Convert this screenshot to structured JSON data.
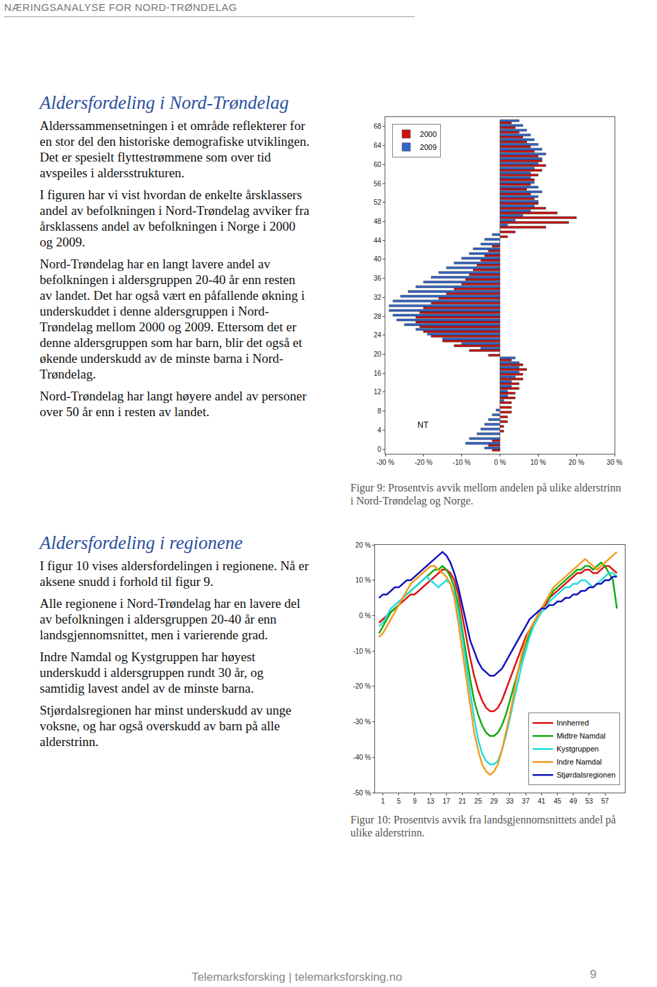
{
  "header": "NÆRINGSANALYSE FOR NORD-TRØNDELAG",
  "sections": [
    {
      "heading": "Aldersfordeling i Nord-Trøndelag",
      "paragraphs": [
        "Alderssammensetningen i et område reflekterer for en stor del den historiske demografiske utviklingen. Det er spesielt flyttestrømmene som over tid avspeiles i aldersstrukturen.",
        "I figuren har vi vist hvordan de enkelte årsklassers andel av befolkningen i Nord-Trøndelag avviker fra årsklassens andel av befolkningen i Norge i 2000 og 2009.",
        "Nord-Trøndelag har en langt lavere andel av befolkningen i aldersgruppen 20-40 år enn resten av landet. Det har også vært en påfallende økning i underskuddet i denne aldersgruppen i Nord-Trøndelag mellom 2000 og 2009. Ettersom det er denne aldersgruppen som har barn, blir det også et økende underskudd av de minste barna i Nord-Trøndelag.",
        "Nord-Trøndelag har langt høyere andel av personer over 50 år enn i resten av landet."
      ]
    },
    {
      "heading": "Aldersfordeling i regionene",
      "paragraphs": [
        "I figur 10 vises aldersfordelingen i regionene. Nå er aksene snudd i forhold til figur 9.",
        "Alle regionene i Nord-Trøndelag har en lavere del av befolkningen i aldersgruppen 20-40 år enn landsgjennomsnittet, men i varierende grad.",
        "Indre Namdal og Kystgruppen har høyest underskudd i aldersgruppen rundt 30 år, og samtidig lavest andel av de minste barna.",
        "Stjørdalsregionen har minst underskudd av unge voksne, og har også overskudd av barn på alle alderstrinn."
      ]
    }
  ],
  "chart_data": [
    {
      "type": "bar",
      "orientation": "horizontal",
      "caption": "Figur 9: Prosentvis avvik mellom andelen på ulike alderstrinn i Nord-Trøndelag og Norge.",
      "categories": [
        0,
        1,
        2,
        3,
        4,
        5,
        6,
        7,
        8,
        9,
        10,
        11,
        12,
        13,
        14,
        15,
        16,
        17,
        18,
        19,
        20,
        21,
        22,
        23,
        24,
        25,
        26,
        27,
        28,
        29,
        30,
        31,
        32,
        33,
        34,
        35,
        36,
        37,
        38,
        39,
        40,
        41,
        42,
        43,
        44,
        45,
        46,
        47,
        48,
        49,
        50,
        51,
        52,
        53,
        54,
        55,
        56,
        57,
        58,
        59,
        60,
        61,
        62,
        63,
        64,
        65,
        66,
        67,
        68,
        69
      ],
      "series": [
        {
          "name": "2000",
          "color": "#cc1111",
          "values": [
            -2,
            -3,
            -2,
            0,
            1,
            1,
            2,
            2,
            3,
            3,
            3,
            4,
            4,
            5,
            5,
            6,
            6,
            7,
            6,
            3,
            -3,
            -8,
            -12,
            -15,
            -18,
            -20,
            -21,
            -22,
            -22,
            -21,
            -20,
            -18,
            -16,
            -14,
            -12,
            -10,
            -9,
            -8,
            -7,
            -6,
            -5,
            -4,
            -3,
            -2,
            0,
            2,
            4,
            12,
            18,
            20,
            15,
            12,
            10,
            9,
            8,
            7,
            8,
            9,
            10,
            11,
            12,
            11,
            10,
            9,
            8,
            7,
            6,
            5,
            4,
            3
          ]
        },
        {
          "name": "2009",
          "color": "#3366cc",
          "values": [
            -4,
            -9,
            -8,
            -6,
            -5,
            -4,
            -3,
            -2,
            -1,
            0,
            1,
            2,
            2,
            3,
            3,
            4,
            5,
            5,
            5,
            4,
            0,
            -5,
            -10,
            -15,
            -19,
            -22,
            -25,
            -27,
            -28,
            -29,
            -29,
            -28,
            -26,
            -24,
            -22,
            -20,
            -18,
            -16,
            -14,
            -12,
            -10,
            -8,
            -7,
            -5,
            -4,
            -2,
            0,
            2,
            4,
            6,
            8,
            9,
            10,
            10,
            11,
            10,
            9,
            8,
            8,
            9,
            10,
            11,
            12,
            11,
            10,
            9,
            8,
            7,
            6,
            5
          ]
        }
      ],
      "xlim": [
        -30,
        30
      ],
      "xticks": [
        {
          "value": -30,
          "label": "-30 %"
        },
        {
          "value": -20,
          "label": "-20 %"
        },
        {
          "value": -10,
          "label": "-10 %"
        },
        {
          "value": 0,
          "label": "0 %"
        },
        {
          "value": 10,
          "label": "10 %"
        },
        {
          "value": 20,
          "label": "20 %"
        },
        {
          "value": 30,
          "label": "30 %"
        }
      ],
      "ylim": [
        -1,
        70
      ],
      "yticks": [
        0,
        4,
        8,
        12,
        16,
        20,
        24,
        28,
        32,
        36,
        40,
        44,
        48,
        52,
        56,
        60,
        64,
        68
      ],
      "annotations": [
        {
          "text": "NT",
          "x": -20,
          "y": 5
        }
      ],
      "legend": "upper left",
      "grid": false
    },
    {
      "type": "line",
      "caption": "Figur 10: Prosentvis avvik fra landsgjennomsnittets andel på ulike alderstrinn.",
      "x": [
        0,
        1,
        2,
        3,
        4,
        5,
        6,
        7,
        8,
        9,
        10,
        11,
        12,
        13,
        14,
        15,
        16,
        17,
        18,
        19,
        20,
        21,
        22,
        23,
        24,
        25,
        26,
        27,
        28,
        29,
        30,
        31,
        32,
        33,
        34,
        35,
        36,
        37,
        38,
        39,
        40,
        41,
        42,
        43,
        44,
        45,
        46,
        47,
        48,
        49,
        50,
        51,
        52,
        53,
        54,
        55,
        56,
        57,
        58,
        59,
        60
      ],
      "series": [
        {
          "name": "Innherred",
          "color": "#dd1111",
          "values": [
            -2,
            -1,
            0,
            1,
            2,
            3,
            4,
            5,
            6,
            6,
            7,
            8,
            9,
            10,
            11,
            12,
            13,
            13,
            12,
            10,
            6,
            0,
            -6,
            -12,
            -17,
            -21,
            -24,
            -26,
            -27,
            -27,
            -26,
            -24,
            -21,
            -18,
            -15,
            -12,
            -9,
            -6,
            -4,
            -2,
            0,
            2,
            3,
            5,
            6,
            7,
            8,
            9,
            10,
            11,
            12,
            12,
            13,
            13,
            12,
            12,
            13,
            14,
            14,
            13,
            12
          ]
        },
        {
          "name": "Midtre Namdal",
          "color": "#11aa11",
          "values": [
            -5,
            -3,
            -1,
            1,
            2,
            3,
            5,
            6,
            7,
            8,
            9,
            10,
            11,
            12,
            13,
            13,
            14,
            13,
            11,
            8,
            3,
            -4,
            -11,
            -18,
            -24,
            -28,
            -31,
            -33,
            -34,
            -34,
            -33,
            -31,
            -28,
            -24,
            -20,
            -16,
            -12,
            -8,
            -5,
            -2,
            0,
            2,
            4,
            5,
            7,
            8,
            9,
            10,
            11,
            12,
            13,
            13,
            14,
            14,
            13,
            14,
            15,
            14,
            12,
            10,
            2
          ]
        },
        {
          "name": "Kystgruppen",
          "color": "#22dddd",
          "values": [
            -3,
            -2,
            0,
            2,
            3,
            4,
            5,
            6,
            7,
            8,
            9,
            10,
            11,
            10,
            9,
            8,
            9,
            10,
            9,
            6,
            1,
            -6,
            -14,
            -22,
            -29,
            -35,
            -39,
            -41,
            -42,
            -42,
            -41,
            -38,
            -34,
            -29,
            -24,
            -19,
            -14,
            -10,
            -6,
            -3,
            -1,
            1,
            2,
            4,
            5,
            6,
            7,
            8,
            8,
            9,
            9,
            10,
            10,
            9,
            8,
            9,
            10,
            11,
            12,
            12,
            11
          ]
        },
        {
          "name": "Indre Namdal",
          "color": "#f39a1e",
          "values": [
            -6,
            -5,
            -3,
            -1,
            1,
            3,
            5,
            7,
            9,
            10,
            11,
            12,
            13,
            14,
            14,
            13,
            12,
            11,
            9,
            5,
            -2,
            -10,
            -18,
            -26,
            -33,
            -38,
            -42,
            -44,
            -45,
            -44,
            -42,
            -38,
            -33,
            -28,
            -22,
            -16,
            -11,
            -7,
            -4,
            -2,
            0,
            2,
            4,
            6,
            8,
            9,
            10,
            11,
            12,
            13,
            14,
            15,
            16,
            15,
            14,
            13,
            14,
            15,
            16,
            17,
            18
          ]
        },
        {
          "name": "Stjørdalsregionen",
          "color": "#1111bb",
          "values": [
            5,
            6,
            6,
            7,
            8,
            8,
            9,
            10,
            10,
            11,
            12,
            13,
            14,
            15,
            16,
            17,
            18,
            17,
            15,
            12,
            8,
            3,
            -2,
            -7,
            -10,
            -13,
            -15,
            -16,
            -17,
            -17,
            -16,
            -15,
            -13,
            -11,
            -9,
            -7,
            -5,
            -3,
            -1,
            0,
            1,
            2,
            2,
            3,
            3,
            4,
            4,
            5,
            5,
            6,
            6,
            7,
            7,
            8,
            8,
            9,
            9,
            10,
            10,
            11,
            11
          ]
        }
      ],
      "xlim": [
        -1,
        62
      ],
      "xticks": [
        1,
        5,
        9,
        13,
        17,
        21,
        25,
        29,
        33,
        37,
        41,
        45,
        49,
        53,
        57
      ],
      "ylim": [
        -50,
        20
      ],
      "yticks": [
        {
          "value": -50,
          "label": "-50 %"
        },
        {
          "value": -40,
          "label": "-40 %"
        },
        {
          "value": -30,
          "label": "-30 %"
        },
        {
          "value": -20,
          "label": "-20 %"
        },
        {
          "value": -10,
          "label": "-10 %"
        },
        {
          "value": 0,
          "label": "0 %"
        },
        {
          "value": 10,
          "label": "10 %"
        },
        {
          "value": 20,
          "label": "20 %"
        }
      ],
      "legend": "lower right",
      "grid": false
    }
  ],
  "footer": {
    "text": "Telemarksforsking | telemarksforsking.no",
    "page": 9
  }
}
